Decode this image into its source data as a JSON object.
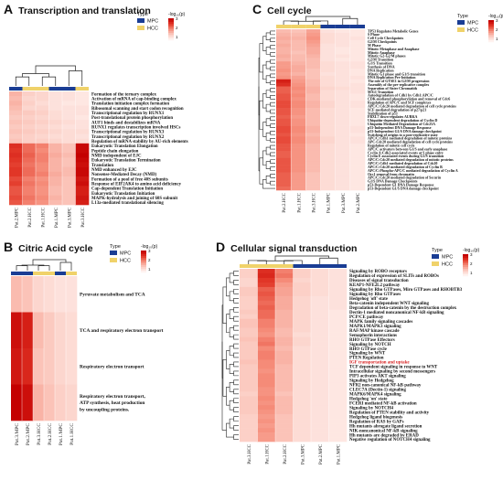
{
  "colors": {
    "mpc": "#1a3d94",
    "hcc": "#f0d26a",
    "scale": [
      "#fff3f0",
      "#fbc7bd",
      "#f58b78",
      "#e33a2a",
      "#c40000"
    ]
  },
  "legend": {
    "type_label": "Type",
    "type_items": [
      "MPC",
      "HCC"
    ],
    "scale_label": "-log₁₀(p)",
    "scale_ticks": [
      "3",
      "2",
      "1"
    ]
  },
  "panels": [
    {
      "id": "A",
      "letter": "A",
      "title": "Transcription and translation",
      "columns": [
        "Pat.2.MPC",
        "Pat.2.HCC",
        "Pat.1.HCC",
        "Pat.1.MPC",
        "Pat.3.MPC",
        "Pat.3.HCC"
      ],
      "col_types": [
        "MPC",
        "HCC",
        "HCC",
        "MPC",
        "MPC",
        "HCC"
      ],
      "rows": [
        "Formation of the ternary complex",
        "Activation of mRNA of cap-binding complex",
        "Translation initiation complex formation",
        "Ribosomal scanning and start codon recognition",
        "Transcriptional regulation by RUNX1",
        "Post-translational protein phosphorylation",
        "AUF1 binds and destabilizes mRNA",
        "RUNX1 regulates transcription involved HSCs",
        "Transcriptional regulation by RUNX3",
        "Transcriptional regulation by RUNX2",
        "Regulation of mRNA stability by AU-rich elements",
        "Eukaryotic Translation Elongation",
        "Peptide chain elongation",
        "NMD independent of EJC",
        "Eukaryotic Translation Termination",
        "Translation",
        "NMD enhanced by EJC",
        "Nonsense-Mediated Decay (NMD)",
        "Formation of a pool of free 40S subunits",
        "Response of EIF2AK4 to amino acid deficiency",
        "Cap-dependent Translation Initiation",
        "Eukaryotic Translation Initiation",
        "MAPK-hydrolysis and joining of 60S subunit",
        "L13a-mediated translational silencing"
      ],
      "highlight_rows": [],
      "values": [
        [
          1.0,
          0.6,
          0.5,
          0.3,
          0.3,
          0.2
        ],
        [
          0.9,
          0.5,
          0.5,
          0.3,
          0.3,
          0.2
        ],
        [
          1.0,
          0.6,
          0.4,
          0.3,
          0.2,
          0.2
        ],
        [
          0.9,
          0.5,
          0.5,
          0.3,
          0.3,
          0.3
        ],
        [
          0.8,
          0.7,
          0.6,
          0.4,
          0.3,
          0.3
        ],
        [
          0.7,
          0.6,
          0.5,
          0.4,
          0.3,
          0.2
        ],
        [
          0.8,
          0.7,
          0.6,
          0.5,
          0.4,
          0.3
        ],
        [
          0.7,
          0.6,
          0.5,
          0.4,
          0.3,
          0.3
        ],
        [
          0.8,
          0.7,
          0.6,
          0.5,
          0.4,
          0.4
        ],
        [
          0.7,
          0.6,
          0.5,
          0.4,
          0.4,
          0.3
        ],
        [
          0.8,
          0.6,
          0.6,
          0.5,
          0.4,
          0.4
        ],
        [
          2.4,
          1.8,
          1.6,
          1.0,
          0.8,
          2.9
        ],
        [
          2.3,
          1.8,
          1.5,
          1.0,
          0.8,
          2.9
        ],
        [
          2.4,
          1.9,
          1.6,
          1.1,
          0.9,
          3.0
        ],
        [
          2.3,
          1.8,
          1.6,
          1.0,
          0.8,
          2.9
        ],
        [
          2.2,
          1.7,
          1.5,
          1.0,
          0.8,
          2.8
        ],
        [
          2.3,
          1.8,
          1.5,
          1.0,
          0.9,
          2.9
        ],
        [
          2.3,
          1.8,
          1.6,
          1.1,
          0.9,
          2.9
        ],
        [
          2.1,
          1.6,
          1.4,
          1.0,
          0.8,
          2.7
        ],
        [
          2.2,
          1.7,
          1.5,
          1.0,
          0.8,
          2.8
        ],
        [
          2.0,
          1.6,
          1.4,
          0.9,
          0.8,
          2.6
        ],
        [
          2.0,
          1.6,
          1.4,
          0.9,
          0.8,
          2.6
        ],
        [
          2.1,
          1.7,
          1.5,
          1.0,
          0.8,
          2.7
        ],
        [
          2.0,
          1.6,
          1.4,
          0.9,
          0.8,
          2.6
        ]
      ]
    },
    {
      "id": "B",
      "letter": "B",
      "title": "Citric Acid cycle",
      "columns": [
        "Pat.3.MPC",
        "Pat.2.MPC",
        "Pat.3.HCC",
        "Pat.2.HCC",
        "Pat.1.MPC",
        "Pat.1.HCC"
      ],
      "col_types": [
        "MPC",
        "MPC",
        "HCC",
        "HCC",
        "MPC",
        "HCC"
      ],
      "rows": [
        "Pyruvate metabolism and TCA",
        "TCA and respiratory electron transport",
        "Respiratory electron transport",
        "Respiratory electron transport, ATP synthesis, heat production by uncoupling proteins."
      ],
      "row_lines": [
        [
          "Pyruvate metabolism and TCA"
        ],
        [
          "TCA and respiratory electron transport"
        ],
        [
          "Respiratory electron transport"
        ],
        [
          "Respiratory electron transport,",
          "ATP synthesis, heat production",
          "by uncoupling proteins."
        ]
      ],
      "highlight_rows": [],
      "values": [
        [
          0.9,
          0.8,
          0.5,
          0.4,
          0.3,
          0.3
        ],
        [
          2.8,
          2.6,
          0.9,
          0.7,
          0.5,
          0.4
        ],
        [
          2.7,
          2.5,
          0.8,
          0.7,
          0.5,
          0.4
        ],
        [
          3.0,
          2.8,
          1.0,
          0.8,
          0.6,
          0.5
        ]
      ]
    },
    {
      "id": "C",
      "letter": "C",
      "title": "Cell cycle",
      "columns": [
        "Pat.2.HCC",
        "Pat.1.HCC",
        "Pat.3.HCC",
        "Pat.1.MPC",
        "Pat.3.MPC",
        "Pat.2.MPC"
      ],
      "col_types": [
        "HCC",
        "HCC",
        "HCC",
        "MPC",
        "MPC",
        "MPC"
      ],
      "rows": [
        "TP53 Regulates Metabolic Genes",
        "S Phase",
        "Cell Cycle Checkpoints",
        "G2/M Checkpoints",
        "M Phase",
        "Mitotic Metaphase and Anaphase",
        "Mitotic Anaphase",
        "Mitotic G2-G2/M phases",
        "G2/M Transition",
        "G1/S Transition",
        "Synthesis of DNA",
        "DNA Replication",
        "Mitotic G1 phase and G1/S transition",
        "DNA Replication Pre-Initiation",
        "The role of GTSE1 in G2/M progression",
        "Assembly of the pre-replicative complex",
        "Separation of Sister Chromatids",
        "M/G1 Transition",
        "Autodegradation of Cdh1 by Cdh1:APC/C",
        "CDK-mediated phosphorylation and removal of Cdc6",
        "Regulation of APC/C and SCF complexes",
        "APC/C:Cdc20 mediated degradation of cell cycle proteins",
        "SCF-mediated degradation of p27/p21",
        "Stabilization of p53",
        "FBXL7 down-regulates AURKA",
        "Ubiquitin-dependent degradation of Cyclin D",
        "Ubiquitin Mediated Degradation of Cdc25A",
        "p53-Independent DNA Damage Response",
        "p53-Independent G1/S DNA damage checkpoint",
        "Switching of origins to a post-replicative state",
        "APC/C:Cdh1 mediated degradation of mitotic proteins",
        "APC-Cdc20 mediated degradation of cell cycle proteins",
        "Regulation of mitotic cell cycle",
        "APC/C activators between G1/S and early anaphase",
        "Cyclin A:Cdk2-associated events at S phase entry",
        "Cyclin E associated events during G1/S transition",
        "APC/C:Cdc20 mediated degradation of mitotic proteins",
        "APC/C:Cdh1 mediated degradation of Cdc20",
        "APC/C:Cdc20 mediated degradation of Cyclin B",
        "APC/C:Phospho-APC/C mediated degradation of Cyclin A",
        "Orc1 removal from chromatin",
        "APC/C:Cdc20 mediated degradation of Securin",
        "G1/S DNA Damage Checkpoints",
        "p53-Dependent G1 DNA Damage Response",
        "p53-Dependent G1/S DNA damage checkpoint"
      ],
      "highlight_rows": [],
      "values": [
        [
          0.9,
          0.8,
          1.2,
          0.3,
          0.2,
          0.2
        ],
        [
          1.0,
          0.9,
          1.3,
          0.4,
          0.3,
          0.2
        ],
        [
          1.1,
          1.0,
          1.4,
          0.4,
          0.3,
          0.3
        ],
        [
          1.0,
          0.9,
          1.3,
          0.4,
          0.3,
          0.2
        ],
        [
          1.1,
          0.9,
          1.2,
          0.3,
          0.3,
          0.2
        ],
        [
          1.0,
          0.9,
          1.1,
          0.3,
          0.2,
          0.2
        ],
        [
          1.0,
          0.8,
          1.1,
          0.3,
          0.2,
          0.2
        ],
        [
          1.1,
          0.9,
          1.0,
          0.3,
          0.3,
          0.2
        ],
        [
          1.0,
          0.9,
          0.9,
          0.3,
          0.2,
          0.2
        ],
        [
          1.3,
          1.0,
          0.9,
          0.4,
          0.3,
          0.3
        ],
        [
          1.3,
          1.1,
          0.9,
          0.4,
          0.3,
          0.3
        ],
        [
          1.4,
          1.1,
          0.8,
          0.4,
          0.3,
          0.2
        ],
        [
          1.3,
          1.0,
          0.8,
          0.3,
          0.3,
          0.2
        ],
        [
          1.4,
          1.2,
          0.8,
          0.4,
          0.3,
          0.3
        ],
        [
          2.6,
          1.3,
          0.9,
          0.4,
          0.3,
          0.2
        ],
        [
          2.4,
          1.4,
          0.9,
          0.4,
          0.3,
          0.3
        ],
        [
          1.9,
          1.5,
          1.0,
          0.5,
          0.4,
          0.3
        ],
        [
          1.9,
          1.4,
          1.0,
          0.4,
          0.3,
          0.3
        ],
        [
          2.0,
          1.5,
          0.9,
          0.4,
          0.3,
          0.2
        ],
        [
          2.0,
          1.4,
          0.9,
          0.4,
          0.3,
          0.2
        ],
        [
          2.1,
          1.5,
          1.0,
          0.5,
          0.3,
          0.3
        ],
        [
          2.1,
          1.5,
          1.0,
          0.5,
          0.3,
          0.3
        ],
        [
          2.0,
          1.4,
          0.9,
          0.4,
          0.3,
          0.2
        ],
        [
          2.0,
          1.4,
          0.9,
          0.4,
          0.3,
          0.2
        ],
        [
          1.9,
          1.3,
          0.9,
          0.4,
          0.3,
          0.2
        ],
        [
          2.0,
          1.4,
          0.9,
          0.4,
          0.3,
          0.2
        ],
        [
          2.0,
          1.4,
          0.9,
          0.4,
          0.3,
          0.2
        ],
        [
          2.1,
          1.5,
          1.0,
          0.4,
          0.3,
          0.3
        ],
        [
          2.1,
          1.5,
          1.0,
          0.4,
          0.3,
          0.3
        ],
        [
          2.0,
          1.4,
          0.9,
          0.4,
          0.3,
          0.2
        ],
        [
          2.1,
          1.5,
          1.0,
          0.5,
          0.3,
          0.3
        ],
        [
          2.1,
          1.5,
          1.0,
          0.5,
          0.3,
          0.3
        ],
        [
          2.0,
          1.4,
          0.9,
          0.4,
          0.3,
          0.2
        ],
        [
          2.0,
          1.4,
          0.9,
          0.4,
          0.3,
          0.2
        ],
        [
          1.9,
          1.4,
          0.9,
          0.4,
          0.3,
          0.2
        ],
        [
          1.9,
          1.4,
          0.9,
          0.4,
          0.3,
          0.2
        ],
        [
          2.0,
          1.4,
          0.9,
          0.4,
          0.3,
          0.2
        ],
        [
          2.0,
          1.4,
          0.9,
          0.4,
          0.3,
          0.2
        ],
        [
          2.0,
          1.4,
          0.9,
          0.4,
          0.3,
          0.2
        ],
        [
          2.0,
          1.4,
          0.9,
          0.4,
          0.3,
          0.2
        ],
        [
          1.9,
          1.3,
          0.8,
          0.4,
          0.3,
          0.2
        ],
        [
          1.9,
          1.3,
          0.8,
          0.4,
          0.3,
          0.2
        ],
        [
          1.9,
          1.3,
          0.8,
          0.4,
          0.3,
          0.2
        ],
        [
          1.9,
          1.3,
          0.8,
          0.4,
          0.3,
          0.2
        ],
        [
          1.8,
          1.3,
          0.8,
          0.4,
          0.3,
          0.2
        ]
      ]
    },
    {
      "id": "D",
      "letter": "D",
      "title": "Cellular signal transduction",
      "columns": [
        "Pat.3.HCC",
        "Pat.1.HCC",
        "Pat.2.HCC",
        "Pat.3.MPC",
        "Pat.2.MPC",
        "Pat.1.MPC"
      ],
      "col_types": [
        "HCC",
        "HCC",
        "HCC",
        "MPC",
        "MPC",
        "MPC"
      ],
      "rows": [
        "Signaling by ROBO receptors",
        "Regulation of expression of SLITs and ROBOs",
        "Diseases of signal transduction",
        "KEAP1-NFE2L2 pathway",
        "Signaling by Rho GTPases, Miro GTPases and RHOBTB3",
        "Signaling by Rho GTPases",
        "Hedgehog 'off' state",
        "Beta-catenin independent WNT signaling",
        "Degradation of beta-catenin by the destruction complex",
        "Dectin-1 mediated noncanonical NF-kB signaling",
        "PCP/CE pathway",
        "MAPK family signaling cascades",
        "MAPK1/MAPK3 signaling",
        "RAF/MAP kinase cascade",
        "Semaphorin interactions",
        "RHO GTPase Effectors",
        "Signaling by NOTCH",
        "RHO GTPase cycle",
        "Signaling by WNT",
        "PTEN Regulation",
        "IGF transportation and uptake",
        "TCF dependent signaling in response to WNT",
        "Intracellular signaling by second messengers",
        "PIP3 activates AKT signaling",
        "Signaling by Hedgehog",
        "NFR2 non-canonical NF-kB pathway",
        "CLEC7A (Dectin-1) signaling",
        "MAPK6/MAPK4 signaling",
        "Hedgehog 'on' state",
        "FCERI mediated NF-kB activation",
        "Signaling by NOTCH4",
        "Regulation of PTEN stability and activity",
        "Hedgehog ligand biogenesis",
        "Regulation of RAS by GAPs",
        "Hh mutants abrogate ligand secretion",
        "NIK-noncanonical NF-kB signaling",
        "Hh mutants are degraded by ERAD",
        "Negative regulation of NOTCH4 signaling"
      ],
      "highlight_rows": [
        20
      ],
      "values": [
        [
          0.6,
          2.4,
          1.6,
          0.6,
          0.4,
          0.3
        ],
        [
          0.6,
          2.5,
          1.7,
          0.6,
          0.4,
          0.3
        ],
        [
          0.5,
          2.3,
          1.5,
          0.5,
          0.4,
          0.3
        ],
        [
          0.5,
          2.2,
          1.3,
          0.6,
          0.4,
          0.3
        ],
        [
          0.7,
          1.9,
          1.2,
          0.6,
          0.4,
          0.3
        ],
        [
          0.7,
          2.0,
          1.2,
          0.6,
          0.4,
          0.3
        ],
        [
          0.6,
          1.9,
          1.1,
          0.5,
          0.3,
          0.3
        ],
        [
          0.6,
          1.8,
          1.1,
          0.5,
          0.3,
          0.3
        ],
        [
          0.6,
          1.9,
          1.1,
          0.5,
          0.3,
          0.3
        ],
        [
          0.7,
          1.8,
          1.0,
          0.5,
          0.3,
          0.2
        ],
        [
          0.6,
          1.8,
          1.0,
          0.5,
          0.3,
          0.2
        ],
        [
          0.8,
          1.6,
          1.0,
          0.5,
          0.3,
          0.2
        ],
        [
          0.8,
          1.6,
          1.0,
          0.5,
          0.3,
          0.2
        ],
        [
          0.7,
          1.5,
          0.9,
          0.5,
          0.3,
          0.2
        ],
        [
          0.7,
          1.4,
          0.9,
          0.4,
          0.3,
          0.2
        ],
        [
          0.8,
          1.6,
          1.0,
          0.5,
          0.3,
          0.2
        ],
        [
          0.7,
          1.7,
          1.0,
          0.5,
          0.3,
          0.2
        ],
        [
          0.7,
          1.5,
          0.9,
          0.4,
          0.3,
          0.2
        ],
        [
          0.7,
          1.6,
          1.0,
          0.4,
          0.3,
          0.2
        ],
        [
          0.7,
          1.6,
          1.0,
          0.4,
          0.3,
          0.2
        ],
        [
          0.8,
          1.5,
          1.0,
          0.4,
          0.3,
          0.2
        ],
        [
          0.7,
          1.5,
          0.9,
          0.4,
          0.3,
          0.2
        ],
        [
          0.7,
          1.4,
          0.9,
          0.4,
          0.3,
          0.2
        ],
        [
          0.7,
          1.5,
          0.9,
          0.4,
          0.3,
          0.2
        ],
        [
          0.7,
          1.5,
          0.9,
          0.4,
          0.3,
          0.2
        ],
        [
          0.7,
          1.5,
          0.9,
          0.4,
          0.3,
          0.2
        ],
        [
          0.7,
          1.4,
          0.9,
          0.4,
          0.3,
          0.2
        ],
        [
          0.6,
          1.4,
          0.8,
          0.4,
          0.3,
          0.2
        ],
        [
          0.7,
          1.5,
          0.9,
          0.4,
          0.3,
          0.2
        ],
        [
          0.7,
          1.4,
          0.9,
          0.4,
          0.3,
          0.2
        ],
        [
          0.7,
          1.5,
          0.9,
          0.4,
          0.3,
          0.2
        ],
        [
          0.7,
          1.4,
          0.9,
          0.4,
          0.3,
          0.2
        ],
        [
          0.6,
          1.3,
          0.8,
          0.4,
          0.3,
          0.2
        ],
        [
          0.6,
          1.4,
          0.8,
          0.4,
          0.3,
          0.2
        ],
        [
          0.6,
          1.3,
          0.8,
          0.4,
          0.3,
          0.2
        ],
        [
          0.6,
          1.4,
          0.8,
          0.4,
          0.3,
          0.2
        ],
        [
          0.6,
          1.3,
          0.8,
          0.4,
          0.3,
          0.2
        ],
        [
          0.6,
          1.3,
          0.8,
          0.4,
          0.3,
          0.2
        ]
      ]
    }
  ]
}
